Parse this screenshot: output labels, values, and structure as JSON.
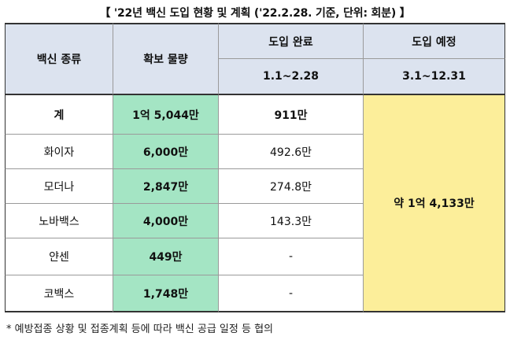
{
  "title": "【 '22년 백신 도입 현황 및 계획 ('22.2.28. 기준, 단위: 회분) 】",
  "headers": {
    "vaccine_type": "백신 종류",
    "secured_amount": "확보 물량",
    "introduced": "도입 완료",
    "introduced_period": "1.1~2.28",
    "planned": "도입 예정",
    "planned_period": "3.1~12.31"
  },
  "rows": [
    {
      "name": "계",
      "secured": "1억 5,044만",
      "introduced": "911만"
    },
    {
      "name": "화이자",
      "secured": "6,000만",
      "introduced": "492.6만"
    },
    {
      "name": "모더나",
      "secured": "2,847만",
      "introduced": "274.8만"
    },
    {
      "name": "노바백스",
      "secured": "4,000만",
      "introduced": "143.3만"
    },
    {
      "name": "얀센",
      "secured": "449만",
      "introduced": "-"
    },
    {
      "name": "코백스",
      "secured": "1,748만",
      "introduced": "-"
    }
  ],
  "planned_total": "약 1억 4,133만",
  "footnote": "* 예방접종 상황 및 접종계획 등에 따라 백신 공급 일정 등 협의",
  "colors": {
    "header_bg": "#dce3ef",
    "secured_bg": "#a4e5c4",
    "planned_bg": "#fcee9a"
  }
}
